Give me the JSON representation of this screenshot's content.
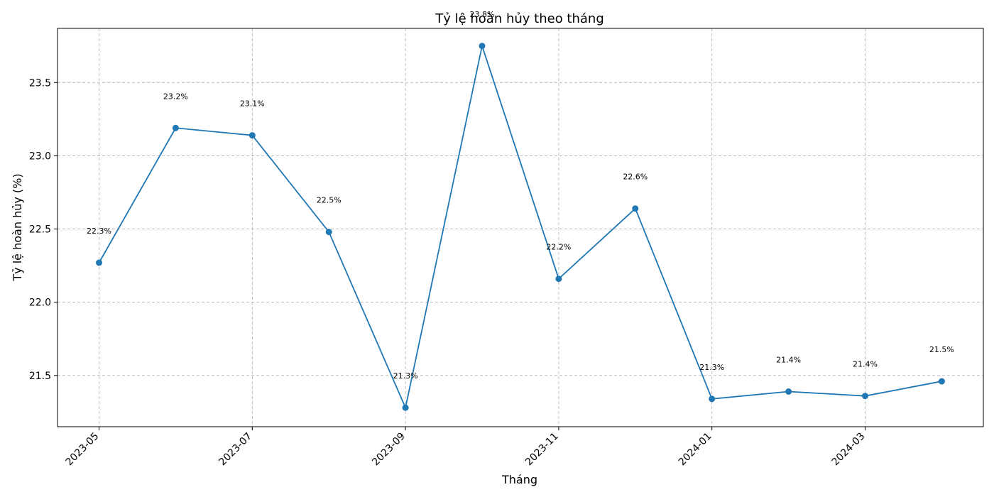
{
  "chart_data": {
    "type": "line",
    "title": "Tỷ lệ hoàn hủy theo tháng",
    "xlabel": "Tháng",
    "ylabel": "Tỷ lệ hoàn hủy (%)",
    "ylim": [
      21.15,
      23.87
    ],
    "yticks": [
      21.5,
      22.0,
      22.5,
      23.0,
      23.5
    ],
    "ytick_labels": [
      "21.5",
      "22.0",
      "22.5",
      "23.0",
      "23.5"
    ],
    "xticks": [
      "2023-05",
      "2023-07",
      "2023-09",
      "2023-11",
      "2024-01",
      "2024-03"
    ],
    "grid": true,
    "series": [
      {
        "color": "#1f77b4",
        "x": [
          "2023-05",
          "2023-06",
          "2023-07",
          "2023-08",
          "2023-09",
          "2023-10",
          "2023-11",
          "2023-12",
          "2024-01",
          "2024-02",
          "2024-03",
          "2024-04"
        ],
        "values": [
          22.27,
          23.19,
          23.14,
          22.48,
          21.28,
          23.75,
          22.16,
          22.64,
          21.34,
          21.39,
          21.36,
          21.46
        ],
        "labels": [
          "22.3%",
          "23.2%",
          "23.1%",
          "22.5%",
          "21.3%",
          "23.8%",
          "22.2%",
          "22.6%",
          "21.3%",
          "21.4%",
          "21.4%",
          "21.5%"
        ]
      }
    ]
  }
}
